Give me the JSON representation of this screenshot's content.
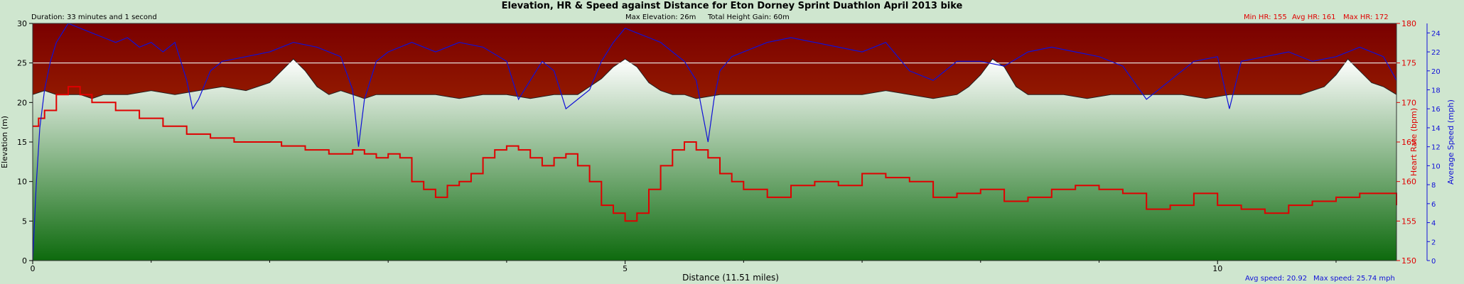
{
  "chart_data": {
    "type": "area",
    "title": "Elevation, HR & Speed against Distance for Eton Dorney Sprint Duathlon April 2013 bike",
    "duration_label": "Duration: 33 minutes and 1 second",
    "elevation_stats": {
      "max_label": "Max Elevation: 26m",
      "gain_label": "Total Height Gain: 60m"
    },
    "hr_stats": {
      "min_label": "Min HR: 155",
      "avg_label": "Avg HR: 161",
      "max_label": "Max HR: 172"
    },
    "speed_stats": {
      "avg_label": "Avg speed: 20.92",
      "max_label": "Max speed: 25.74 mph"
    },
    "xlabel": "Distance (11.51 miles)",
    "xlim": [
      0,
      11.51
    ],
    "x_ticks": [
      0,
      5,
      10
    ],
    "ylabel_left": "Elevation (m)",
    "ylim_left": [
      0,
      30
    ],
    "y_ticks_left": [
      0,
      5,
      10,
      15,
      20,
      25,
      30
    ],
    "ylabel_right_hr": "Heart Rate (bpm)",
    "ylim_right_hr": [
      150,
      180
    ],
    "y_ticks_right_hr": [
      150,
      155,
      160,
      165,
      170,
      175,
      180
    ],
    "ylabel_right_speed": "Average Speed (mph)",
    "ylim_right_speed": [
      0,
      25
    ],
    "y_ticks_right_speed": [
      0,
      2,
      4,
      6,
      8,
      10,
      12,
      14,
      16,
      18,
      20,
      22,
      24
    ],
    "reference_line_elevation": 25,
    "colors": {
      "hr": "#e00000",
      "speed": "#1010d8",
      "elevation_top": "#ffffff",
      "elevation_bottom": "#0d6a0d",
      "sky_top": "#7a0000",
      "sky_bottom": "#c85000",
      "hr_axis": "#e00000",
      "speed_axis": "#1010d8"
    },
    "series": [
      {
        "name": "Elevation",
        "x": [
          0,
          0.1,
          0.2,
          0.3,
          0.4,
          0.5,
          0.6,
          0.8,
          1.0,
          1.2,
          1.4,
          1.6,
          1.8,
          2.0,
          2.1,
          2.2,
          2.3,
          2.4,
          2.5,
          2.6,
          2.7,
          2.8,
          2.9,
          3.0,
          3.2,
          3.4,
          3.6,
          3.8,
          4.0,
          4.2,
          4.4,
          4.6,
          4.7,
          4.8,
          4.9,
          5.0,
          5.1,
          5.2,
          5.3,
          5.4,
          5.5,
          5.6,
          5.8,
          6.0,
          6.2,
          6.4,
          6.6,
          6.8,
          7.0,
          7.2,
          7.4,
          7.6,
          7.8,
          7.9,
          8.0,
          8.1,
          8.2,
          8.3,
          8.4,
          8.5,
          8.7,
          8.9,
          9.1,
          9.3,
          9.5,
          9.7,
          9.9,
          10.1,
          10.3,
          10.5,
          10.7,
          10.9,
          11.0,
          11.1,
          11.2,
          11.3,
          11.4,
          11.51
        ],
        "values": [
          21,
          21.5,
          21,
          21,
          21,
          20.5,
          21,
          21,
          21.5,
          21,
          21.5,
          22,
          21.5,
          22.5,
          24,
          25.5,
          24,
          22,
          21,
          21.5,
          21,
          20.5,
          21,
          21,
          21,
          21,
          20.5,
          21,
          21,
          20.5,
          21,
          21,
          22,
          23,
          24.5,
          25.5,
          24.5,
          22.5,
          21.5,
          21,
          21,
          20.5,
          21,
          21,
          21,
          21,
          21,
          21,
          21,
          21.5,
          21,
          20.5,
          21,
          22,
          23.5,
          25.5,
          24.5,
          22,
          21,
          21,
          21,
          20.5,
          21,
          21,
          21,
          21,
          20.5,
          21,
          21,
          21,
          21,
          22,
          23.5,
          25.5,
          24,
          22.5,
          22,
          21
        ]
      },
      {
        "name": "Heart Rate",
        "x": [
          0,
          0.05,
          0.1,
          0.2,
          0.3,
          0.4,
          0.5,
          0.7,
          0.9,
          1.1,
          1.3,
          1.5,
          1.7,
          1.9,
          2.1,
          2.3,
          2.5,
          2.7,
          2.8,
          2.9,
          3.0,
          3.1,
          3.2,
          3.3,
          3.4,
          3.5,
          3.6,
          3.7,
          3.8,
          3.9,
          4.0,
          4.1,
          4.2,
          4.3,
          4.4,
          4.5,
          4.6,
          4.7,
          4.8,
          4.9,
          5.0,
          5.1,
          5.2,
          5.3,
          5.4,
          5.5,
          5.6,
          5.7,
          5.8,
          5.9,
          6.0,
          6.2,
          6.4,
          6.6,
          6.8,
          7.0,
          7.2,
          7.4,
          7.6,
          7.8,
          8.0,
          8.2,
          8.4,
          8.6,
          8.8,
          9.0,
          9.2,
          9.4,
          9.6,
          9.8,
          10.0,
          10.2,
          10.4,
          10.6,
          10.8,
          11.0,
          11.2,
          11.4,
          11.51
        ],
        "values": [
          167,
          168,
          169,
          171,
          172,
          171,
          170,
          169,
          168,
          167,
          166,
          165.5,
          165,
          165,
          164.5,
          164,
          163.5,
          164,
          163.5,
          163,
          163.5,
          163,
          160,
          159,
          158,
          159.5,
          160,
          161,
          163,
          164,
          164.5,
          164,
          163,
          162,
          163,
          163.5,
          162,
          160,
          157,
          156,
          155,
          156,
          159,
          162,
          164,
          165,
          164,
          163,
          161,
          160,
          159,
          158,
          159.5,
          160,
          159.5,
          161,
          160.5,
          160,
          158,
          158.5,
          159,
          157.5,
          158,
          159,
          159.5,
          159,
          158.5,
          156.5,
          157,
          158.5,
          157,
          156.5,
          156,
          157,
          157.5,
          158,
          158.5,
          158.5,
          157
        ]
      },
      {
        "name": "Average Speed",
        "x": [
          0,
          0.03,
          0.06,
          0.1,
          0.15,
          0.2,
          0.3,
          0.4,
          0.5,
          0.6,
          0.7,
          0.8,
          0.9,
          1.0,
          1.1,
          1.2,
          1.3,
          1.35,
          1.4,
          1.5,
          1.6,
          1.8,
          2.0,
          2.2,
          2.4,
          2.6,
          2.7,
          2.75,
          2.8,
          2.9,
          3.0,
          3.2,
          3.4,
          3.6,
          3.8,
          4.0,
          4.1,
          4.2,
          4.3,
          4.4,
          4.5,
          4.6,
          4.7,
          4.8,
          4.9,
          5.0,
          5.1,
          5.2,
          5.3,
          5.4,
          5.5,
          5.6,
          5.7,
          5.75,
          5.8,
          5.9,
          6.0,
          6.2,
          6.4,
          6.6,
          6.8,
          7.0,
          7.2,
          7.4,
          7.6,
          7.8,
          8.0,
          8.2,
          8.4,
          8.6,
          8.8,
          9.0,
          9.2,
          9.4,
          9.6,
          9.8,
          10.0,
          10.1,
          10.2,
          10.4,
          10.6,
          10.8,
          11.0,
          11.2,
          11.4,
          11.51
        ],
        "values": [
          0,
          8,
          14,
          18,
          21,
          23,
          25,
          24.5,
          24,
          23.5,
          23,
          23.5,
          22.5,
          23,
          22,
          23,
          19,
          16,
          17,
          20,
          21,
          21.5,
          22,
          23,
          22.5,
          21.5,
          18,
          12,
          17,
          21,
          22,
          23,
          22,
          23,
          22.5,
          21,
          17,
          19,
          21,
          20,
          16,
          17,
          18,
          21,
          23,
          24.5,
          24,
          23.5,
          23,
          22,
          21,
          19,
          12.5,
          17,
          20,
          21.5,
          22,
          23,
          23.5,
          23,
          22.5,
          22,
          23,
          20,
          19,
          21,
          21,
          20.5,
          22,
          22.5,
          22,
          21.5,
          20.5,
          17,
          19,
          21,
          21.5,
          16,
          21,
          21.5,
          22,
          21,
          21.5,
          22.5,
          21.5,
          19
        ]
      }
    ]
  }
}
